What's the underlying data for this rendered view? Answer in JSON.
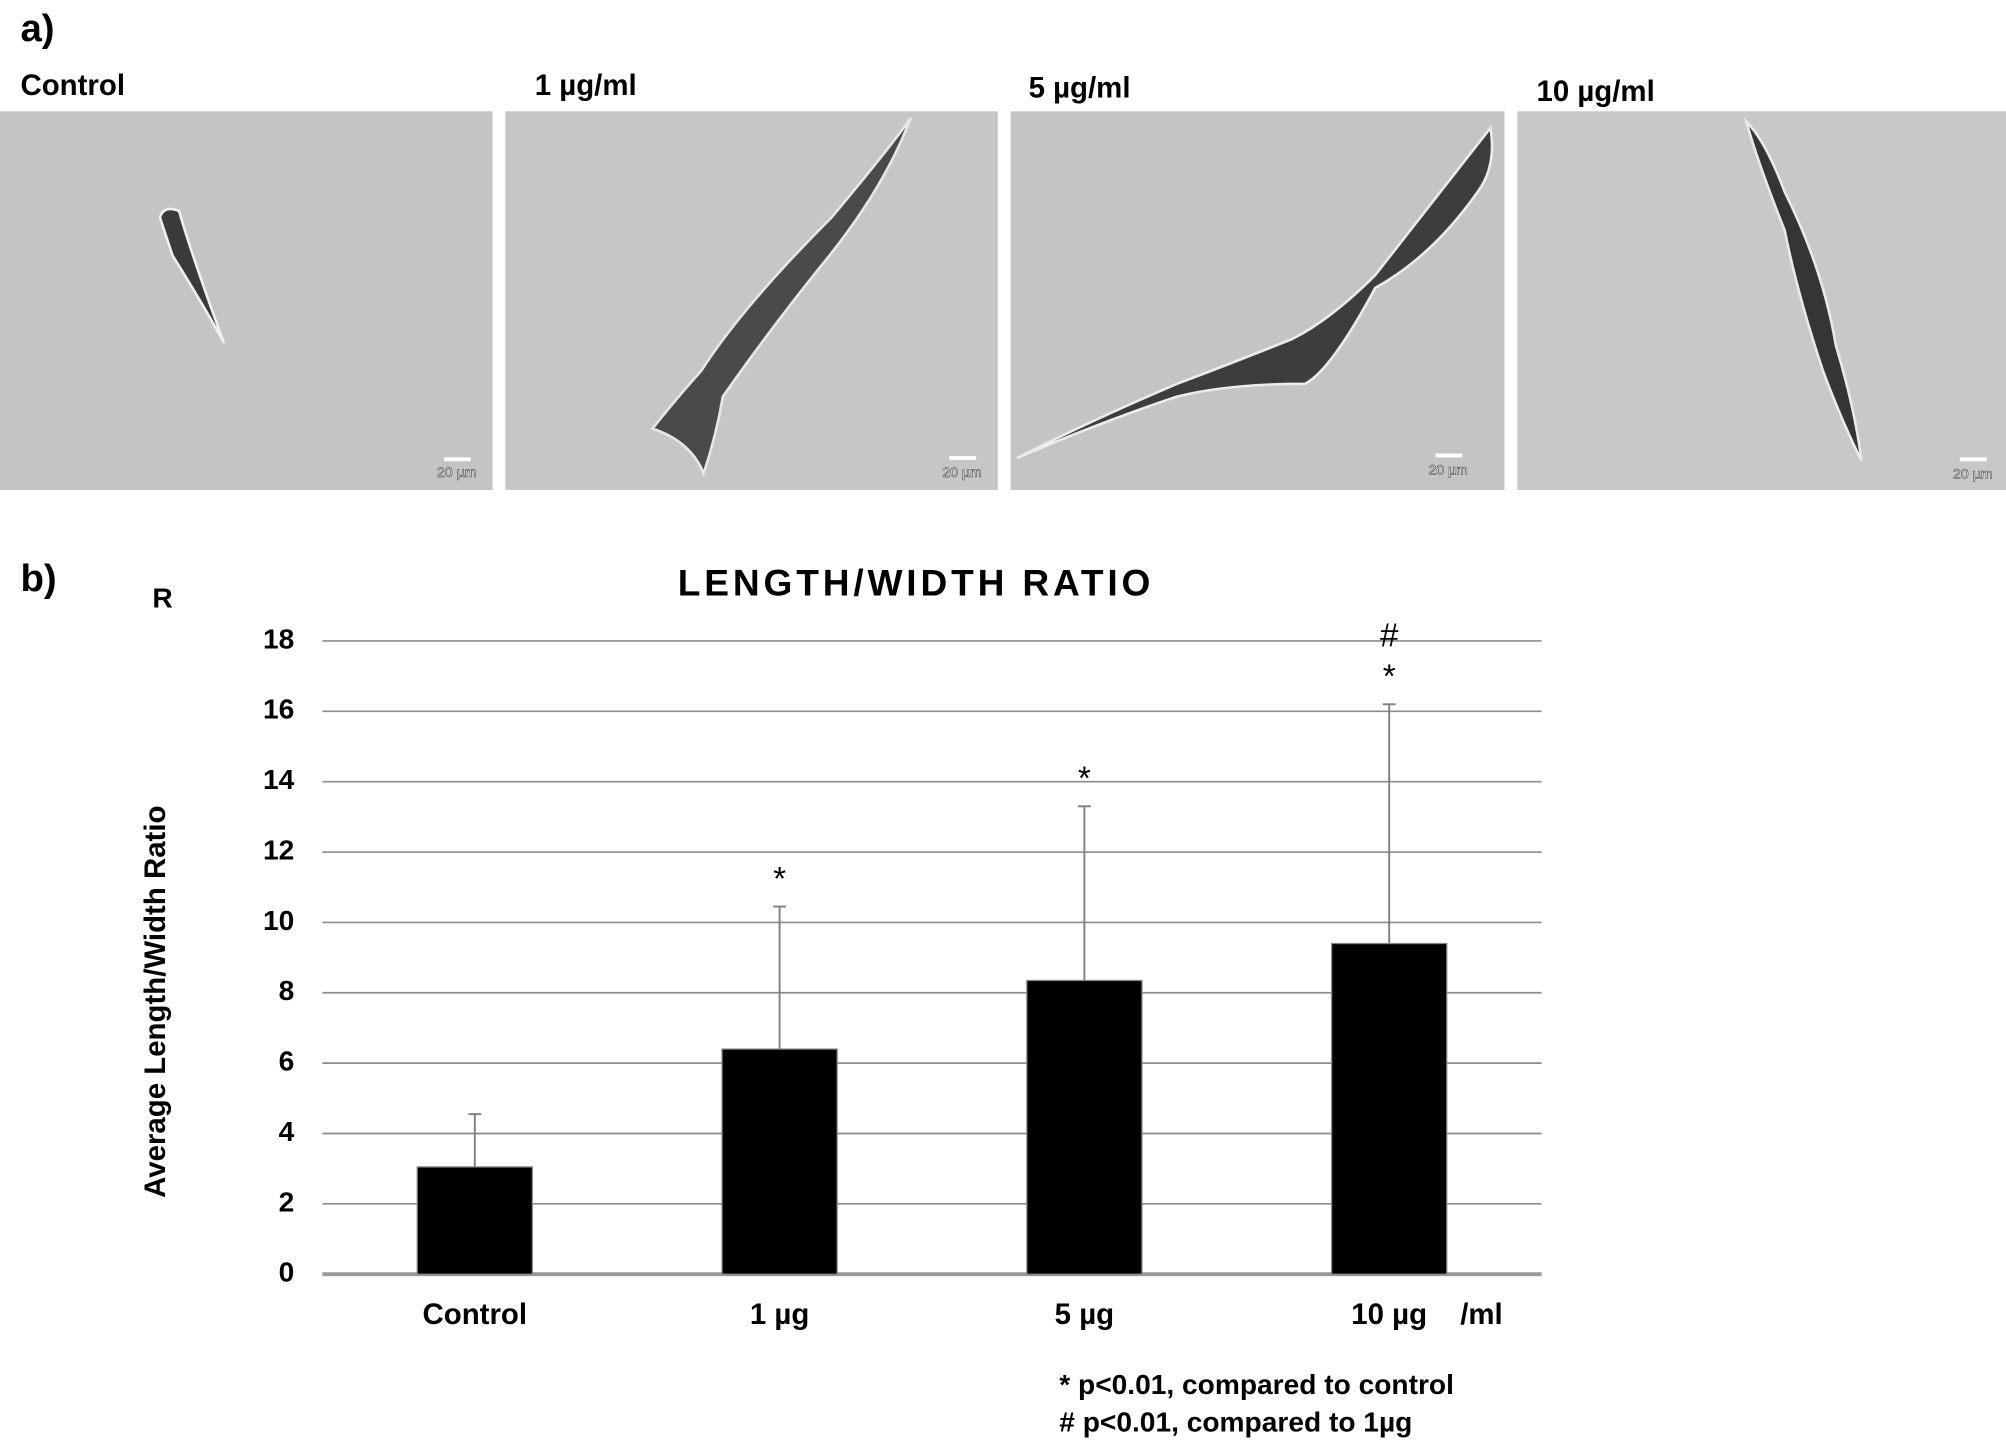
{
  "figure": {
    "panel_a_label": "a)",
    "panel_b_label": "b)",
    "stray_label": "R",
    "panels": [
      {
        "label": "Control",
        "scale_bar": "20 µm"
      },
      {
        "label": "1 µg/ml",
        "scale_bar": "20 µm"
      },
      {
        "label": "5 µg/ml",
        "scale_bar": "20 µm"
      },
      {
        "label": "10 µg/ml",
        "scale_bar": "20 µm"
      }
    ]
  },
  "chart_data": {
    "type": "bar",
    "title": "LENGTH/WIDTH RATIO",
    "y_label": "Average Length/Width Ratio",
    "categories": [
      "Control",
      "1 µg",
      "5 µg",
      "10 µg"
    ],
    "x_unit": "/ml",
    "values": [
      3.05,
      6.4,
      8.35,
      9.4
    ],
    "errors": [
      1.5,
      4.05,
      4.95,
      6.8
    ],
    "color": "#000000",
    "error_color": "#808080",
    "significance": [
      null,
      [
        "*"
      ],
      [
        "*"
      ],
      [
        "*",
        "#"
      ]
    ],
    "ylim": [
      0,
      18
    ],
    "yticks": [
      0,
      2,
      4,
      6,
      8,
      10,
      12,
      14,
      16,
      18
    ],
    "grid": true,
    "footnotes": [
      "* p<0.01, compared to control",
      "# p<0.01, compared to 1µg"
    ]
  }
}
